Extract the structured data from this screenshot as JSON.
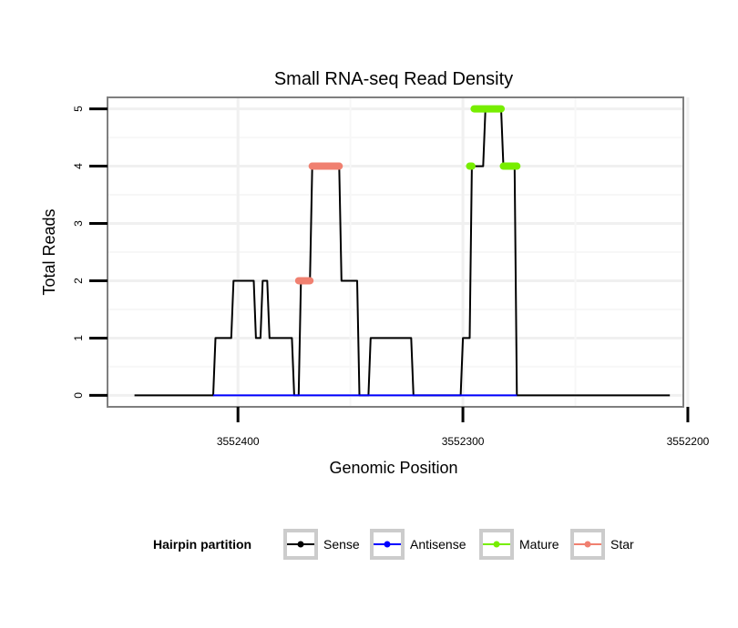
{
  "chart_data": {
    "type": "line",
    "title": "Small RNA-seq Read Density",
    "xlabel": "Genomic Position",
    "ylabel": "Total Reads",
    "x_reversed": true,
    "xlim": [
      3552202,
      3552458
    ],
    "ylim": [
      -0.2,
      5.2
    ],
    "x_ticks": [
      3552400,
      3552300,
      3552200
    ],
    "x_tick_labels": [
      "3552400",
      "3552300",
      "3552200"
    ],
    "y_ticks": [
      0,
      1,
      2,
      3,
      4,
      5
    ],
    "y_tick_labels": [
      "0",
      "1",
      "2",
      "3",
      "4",
      "5"
    ],
    "grid": true,
    "legend": {
      "title": "Hairpin partition",
      "position": "bottom",
      "entries": [
        {
          "label": "Sense",
          "color": "#000000"
        },
        {
          "label": "Antisense",
          "color": "#0000ff"
        },
        {
          "label": "Mature",
          "color": "#77ee00"
        },
        {
          "label": "Star",
          "color": "#f08070"
        }
      ]
    },
    "series": [
      {
        "name": "Sense",
        "color": "#000000",
        "x": [
          3552446,
          3552411,
          3552410,
          3552403,
          3552402,
          3552397,
          3552396,
          3552393,
          3552392,
          3552390,
          3552389,
          3552387,
          3552386,
          3552376,
          3552375,
          3552373,
          3552372,
          3552368,
          3552367,
          3552355,
          3552354,
          3552347,
          3552346,
          3552345,
          3552344,
          3552342,
          3552341,
          3552323,
          3552322,
          3552307,
          3552306,
          3552301,
          3552300,
          3552297,
          3552296,
          3552291,
          3552290,
          3552283,
          3552282,
          3552277,
          3552276,
          3552260,
          3552259,
          3552248,
          3552208
        ],
        "y": [
          0,
          0,
          1,
          1,
          2,
          2,
          2,
          2,
          1,
          1,
          2,
          2,
          1,
          1,
          0,
          0,
          2,
          2,
          4,
          4,
          2,
          2,
          0,
          0,
          0,
          0,
          1,
          1,
          0,
          0,
          0,
          0,
          1,
          1,
          4,
          4,
          5,
          5,
          4,
          4,
          0,
          0,
          0,
          0,
          0
        ]
      },
      {
        "name": "Antisense",
        "color": "#0000ff",
        "x": [
          3552411,
          3552276
        ],
        "y": [
          0,
          0
        ]
      }
    ],
    "highlights": [
      {
        "name": "Star",
        "color": "#f08070",
        "x_start": 3552373,
        "x_end": 3552368,
        "y": 2
      },
      {
        "name": "Star",
        "color": "#f08070",
        "x_start": 3552367,
        "x_end": 3552355,
        "y": 4
      },
      {
        "name": "Mature",
        "color": "#77ee00",
        "x_start": 3552297,
        "x_end": 3552296,
        "y": 4
      },
      {
        "name": "Mature",
        "color": "#77ee00",
        "x_start": 3552295,
        "x_end": 3552283,
        "y": 5
      },
      {
        "name": "Mature",
        "color": "#77ee00",
        "x_start": 3552282,
        "x_end": 3552276,
        "y": 4
      }
    ]
  }
}
